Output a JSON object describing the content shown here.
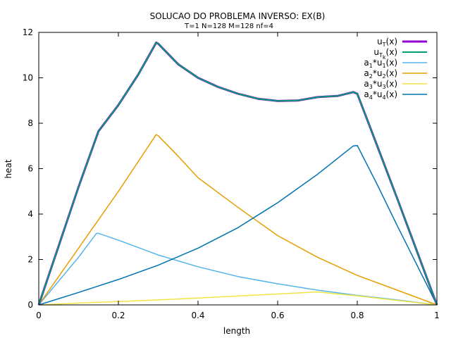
{
  "chart_data": {
    "type": "line",
    "title": "SOLUCAO DO PROBLEMA INVERSO: EX(B)",
    "subtitle": "T=1 N=128 M=128 nf=4",
    "xlabel": "length",
    "ylabel": "heat",
    "xlim": [
      0,
      1
    ],
    "ylim": [
      0,
      12
    ],
    "xticks": [
      0,
      0.2,
      0.4,
      0.6,
      0.8,
      1
    ],
    "xtick_labels": [
      "0",
      "0.2",
      "0.4",
      "0.6",
      "0.8",
      "1"
    ],
    "yticks": [
      0,
      2,
      4,
      6,
      8,
      10,
      12
    ],
    "ytick_labels": [
      "0",
      "2",
      "4",
      "6",
      "8",
      "10",
      "12"
    ],
    "grid": false,
    "legend_position": "top-right",
    "series": [
      {
        "name": "u_T(x)",
        "label": {
          "base": "u",
          "sub": "T",
          "subsub": "",
          "tail": "(x)"
        },
        "color": "#9400d3",
        "width": 3,
        "x": [
          0,
          0.05,
          0.1,
          0.15,
          0.2,
          0.25,
          0.295,
          0.3,
          0.35,
          0.4,
          0.45,
          0.5,
          0.55,
          0.6,
          0.65,
          0.7,
          0.75,
          0.79,
          0.8,
          0.85,
          0.9,
          0.95,
          1.0
        ],
        "y": [
          0,
          2.6,
          5.2,
          7.65,
          8.8,
          10.15,
          11.55,
          11.5,
          10.6,
          10.0,
          9.6,
          9.3,
          9.08,
          8.98,
          9.0,
          9.15,
          9.2,
          9.37,
          9.3,
          7.0,
          4.7,
          2.35,
          0
        ]
      },
      {
        "name": "u_Tk(x)",
        "label": {
          "base": "u",
          "sub": "T",
          "subsub": "k",
          "tail": "(x)"
        },
        "color": "#009e73",
        "width": 2,
        "x": [
          0,
          0.05,
          0.1,
          0.15,
          0.2,
          0.25,
          0.295,
          0.3,
          0.35,
          0.4,
          0.45,
          0.5,
          0.55,
          0.6,
          0.65,
          0.7,
          0.75,
          0.79,
          0.8,
          0.85,
          0.9,
          0.95,
          1.0
        ],
        "y": [
          0,
          2.6,
          5.2,
          7.65,
          8.8,
          10.15,
          11.55,
          11.5,
          10.6,
          10.0,
          9.6,
          9.3,
          9.08,
          8.98,
          9.0,
          9.15,
          9.2,
          9.37,
          9.3,
          7.0,
          4.7,
          2.35,
          0
        ]
      },
      {
        "name": "a_1*u_1(x)",
        "label": {
          "base": "a",
          "sub": "1",
          "mid": "*u",
          "sub2": "1",
          "tail": "(x)"
        },
        "color": "#56b4e9",
        "width": 1.5,
        "x": [
          0,
          0.05,
          0.1,
          0.145,
          0.15,
          0.2,
          0.3,
          0.4,
          0.5,
          0.6,
          0.7,
          0.8,
          0.9,
          1.0
        ],
        "y": [
          0,
          1.05,
          2.1,
          3.15,
          3.15,
          2.85,
          2.2,
          1.68,
          1.25,
          0.93,
          0.65,
          0.42,
          0.22,
          0
        ]
      },
      {
        "name": "a_2*u_2(x)",
        "label": {
          "base": "a",
          "sub": "2",
          "mid": "*u",
          "sub2": "2",
          "tail": "(x)"
        },
        "color": "#e69f00",
        "width": 1.5,
        "x": [
          0,
          0.1,
          0.2,
          0.295,
          0.3,
          0.35,
          0.4,
          0.5,
          0.6,
          0.7,
          0.8,
          0.9,
          1.0
        ],
        "y": [
          0,
          2.5,
          5.0,
          7.5,
          7.45,
          6.55,
          5.6,
          4.3,
          3.05,
          2.1,
          1.3,
          0.65,
          0
        ]
      },
      {
        "name": "a_3*u_3(x)",
        "label": {
          "base": "a",
          "sub": "3",
          "mid": "*u",
          "sub2": "3",
          "tail": "(x)"
        },
        "color": "#f0e442",
        "width": 1.5,
        "x": [
          0,
          0.1,
          0.2,
          0.3,
          0.4,
          0.5,
          0.6,
          0.7,
          0.8,
          0.9,
          1.0
        ],
        "y": [
          0,
          0.08,
          0.15,
          0.22,
          0.3,
          0.39,
          0.48,
          0.57,
          0.4,
          0.2,
          0
        ]
      },
      {
        "name": "a_4*u_4(x)",
        "label": {
          "base": "a",
          "sub": "4",
          "mid": "*u",
          "sub2": "4",
          "tail": "(x)"
        },
        "color": "#0072b2",
        "width": 1.5,
        "x": [
          0,
          0.1,
          0.2,
          0.3,
          0.4,
          0.5,
          0.6,
          0.7,
          0.79,
          0.8,
          0.85,
          0.9,
          0.95,
          1.0
        ],
        "y": [
          0,
          0.55,
          1.12,
          1.75,
          2.5,
          3.4,
          4.5,
          5.75,
          7.0,
          7.02,
          5.3,
          3.5,
          1.75,
          0
        ]
      }
    ]
  }
}
